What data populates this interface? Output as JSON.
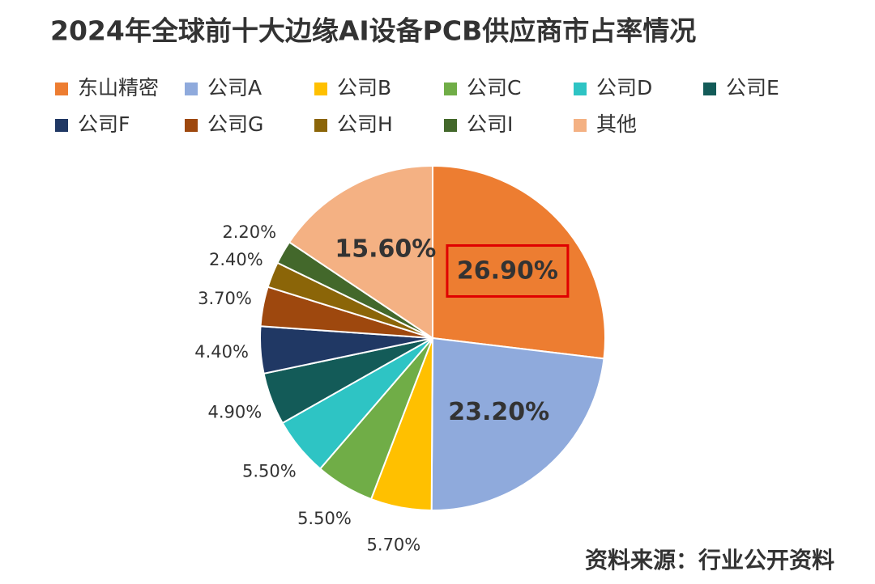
{
  "chart_data": {
    "type": "pie",
    "title": "2024年全球前十大边缘AI设备PCB供应商市占率情况",
    "categories": [
      "东山精密",
      "公司A",
      "公司B",
      "公司C",
      "公司D",
      "公司E",
      "公司F",
      "公司G",
      "公司H",
      "公司I",
      "其他"
    ],
    "values": [
      26.9,
      23.2,
      5.7,
      5.5,
      5.5,
      4.9,
      4.4,
      3.7,
      2.4,
      2.2,
      15.6
    ],
    "value_labels": [
      "26.90%",
      "23.20%",
      "5.70%",
      "5.50%",
      "5.50%",
      "4.90%",
      "4.40%",
      "3.70%",
      "2.40%",
      "2.20%",
      "15.60%"
    ],
    "colors": [
      "#ED7D31",
      "#8FAADC",
      "#FFC000",
      "#70AD47",
      "#2EC4C4",
      "#135B58",
      "#203864",
      "#9E480E",
      "#8B6508",
      "#43682B",
      "#F4B183"
    ],
    "legend": "top",
    "source": "资料来源：行业公开资料"
  }
}
